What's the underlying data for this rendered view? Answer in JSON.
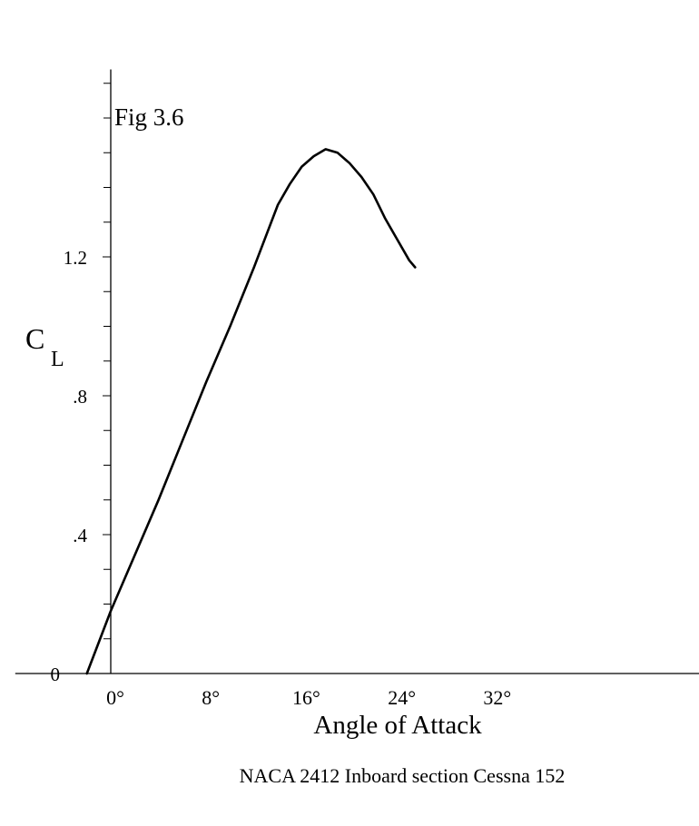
{
  "chart_data": {
    "type": "line",
    "title": "Fig 3.6",
    "ylabel_main": "C",
    "ylabel_sub": "L",
    "xlabel": "Angle of Attack",
    "caption": "NACA  2412  Inboard section Cessna 152",
    "x_ticks": [
      {
        "value": 0,
        "label": "0°"
      },
      {
        "value": 8,
        "label": "8°"
      },
      {
        "value": 16,
        "label": "16°"
      },
      {
        "value": 24,
        "label": "24°"
      },
      {
        "value": 32,
        "label": "32°"
      }
    ],
    "y_ticks": [
      {
        "value": 0,
        "label": "0"
      },
      {
        "value": 0.4,
        "label": ".4"
      },
      {
        "value": 0.8,
        "label": ".8"
      },
      {
        "value": 1.2,
        "label": "1.2"
      }
    ],
    "y_minor_step": 0.1,
    "xlim": [
      -8,
      56
    ],
    "ylim": [
      0,
      1.74
    ],
    "grid": false,
    "series": [
      {
        "x": [
          -2.0,
          0,
          2,
          4,
          6,
          8,
          10,
          12,
          14,
          15,
          16,
          17,
          18,
          19,
          20,
          21,
          22,
          23,
          24,
          25,
          25.5
        ],
        "y": [
          0.0,
          0.18,
          0.34,
          0.5,
          0.67,
          0.84,
          1.0,
          1.17,
          1.35,
          1.41,
          1.46,
          1.49,
          1.51,
          1.5,
          1.47,
          1.43,
          1.38,
          1.31,
          1.25,
          1.19,
          1.17
        ]
      }
    ]
  }
}
